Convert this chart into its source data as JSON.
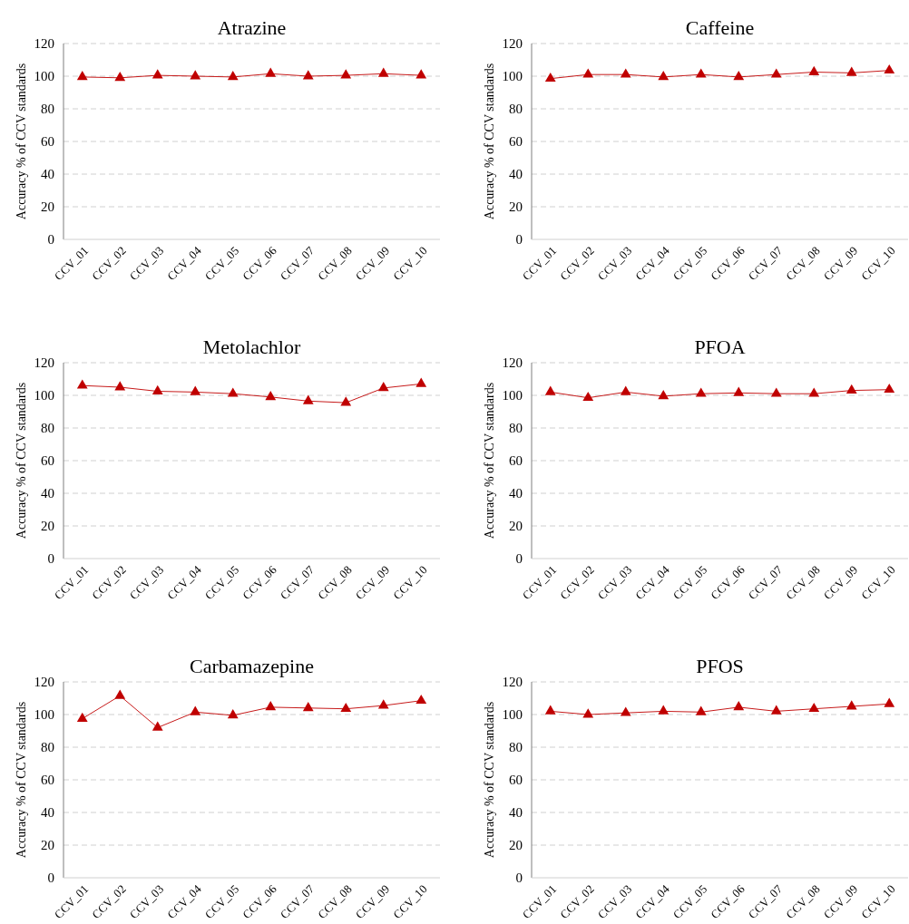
{
  "chart_data": [
    {
      "type": "line",
      "title": "Atrazine",
      "ylabel": "Accuracy % of CCV standards",
      "categories": [
        "CCV_01",
        "CCV_02",
        "CCV_03",
        "CCV_04",
        "CCV_05",
        "CCV_06",
        "CCV_07",
        "CCV_08",
        "CCV_09",
        "CCV_10"
      ],
      "series": [
        {
          "color": "#c00000",
          "values": [
            99.5,
            99,
            100.5,
            100,
            99.5,
            101.5,
            100,
            100.5,
            101.5,
            100.5
          ]
        }
      ],
      "ylim": [
        0,
        120
      ],
      "yticks": [
        0,
        20,
        40,
        60,
        80,
        100,
        120
      ],
      "grid": "y",
      "marker": "triangle"
    },
    {
      "type": "line",
      "title": "Caffeine",
      "ylabel": "Accuracy % of CCV standards",
      "categories": [
        "CCV_01",
        "CCV_02",
        "CCV_03",
        "CCV_04",
        "CCV_05",
        "CCV_06",
        "CCV_07",
        "CCV_08",
        "CCV_09",
        "CCV_10"
      ],
      "series": [
        {
          "color": "#c00000",
          "values": [
            98.5,
            101,
            101,
            99.5,
            101,
            99.5,
            101,
            102.5,
            102,
            103.5
          ]
        }
      ],
      "ylim": [
        0,
        120
      ],
      "yticks": [
        0,
        20,
        40,
        60,
        80,
        100,
        120
      ],
      "grid": "y",
      "marker": "triangle"
    },
    {
      "type": "line",
      "title": "Metolachlor",
      "ylabel": "Accuracy % of CCV standards",
      "categories": [
        "CCV_01",
        "CCV_02",
        "CCV_03",
        "CCV_04",
        "CCV_05",
        "CCV_06",
        "CCV_07",
        "CCV_08",
        "CCV_09",
        "CCV_10"
      ],
      "series": [
        {
          "color": "#c00000",
          "values": [
            106,
            105,
            102.5,
            102,
            101,
            99,
            96.5,
            95.5,
            104.5,
            107
          ]
        }
      ],
      "ylim": [
        0,
        120
      ],
      "yticks": [
        0,
        20,
        40,
        60,
        80,
        100,
        120
      ],
      "grid": "y",
      "marker": "triangle"
    },
    {
      "type": "line",
      "title": "PFOA",
      "ylabel": "Accuracy % of CCV standards",
      "categories": [
        "CCV_01",
        "CCV_02",
        "CCV_03",
        "CCV_04",
        "CCV_05",
        "CCV_06",
        "CCV_07",
        "CCV_08",
        "CCV_09",
        "CCV_10"
      ],
      "series": [
        {
          "color": "#c00000",
          "values": [
            102,
            98.5,
            102,
            99.5,
            101,
            101.5,
            101,
            101,
            103,
            103.5
          ]
        }
      ],
      "ylim": [
        0,
        120
      ],
      "yticks": [
        0,
        20,
        40,
        60,
        80,
        100,
        120
      ],
      "grid": "y",
      "marker": "triangle"
    },
    {
      "type": "line",
      "title": "Carbamazepine",
      "ylabel": "Accuracy % of CCV standards",
      "categories": [
        "CCV_01",
        "CCV_02",
        "CCV_03",
        "CCV_04",
        "CCV_05",
        "CCV_06",
        "CCV_07",
        "CCV_08",
        "CCV_09",
        "CCV_10"
      ],
      "series": [
        {
          "color": "#c00000",
          "values": [
            97.5,
            111.5,
            92,
            101.5,
            99.5,
            104.5,
            104,
            103.5,
            105.5,
            108.5
          ]
        }
      ],
      "ylim": [
        0,
        120
      ],
      "yticks": [
        0,
        20,
        40,
        60,
        80,
        100,
        120
      ],
      "grid": "y",
      "marker": "triangle"
    },
    {
      "type": "line",
      "title": "PFOS",
      "ylabel": "Accuracy % of CCV standards",
      "categories": [
        "CCV_01",
        "CCV_02",
        "CCV_03",
        "CCV_04",
        "CCV_05",
        "CCV_06",
        "CCV_07",
        "CCV_08",
        "CCV_09",
        "CCV_10"
      ],
      "series": [
        {
          "color": "#c00000",
          "values": [
            102,
            100,
            101,
            102,
            101.5,
            104.5,
            102,
            103.5,
            105,
            106.5
          ]
        }
      ],
      "ylim": [
        0,
        120
      ],
      "yticks": [
        0,
        20,
        40,
        60,
        80,
        100,
        120
      ],
      "grid": "y",
      "marker": "triangle"
    }
  ]
}
